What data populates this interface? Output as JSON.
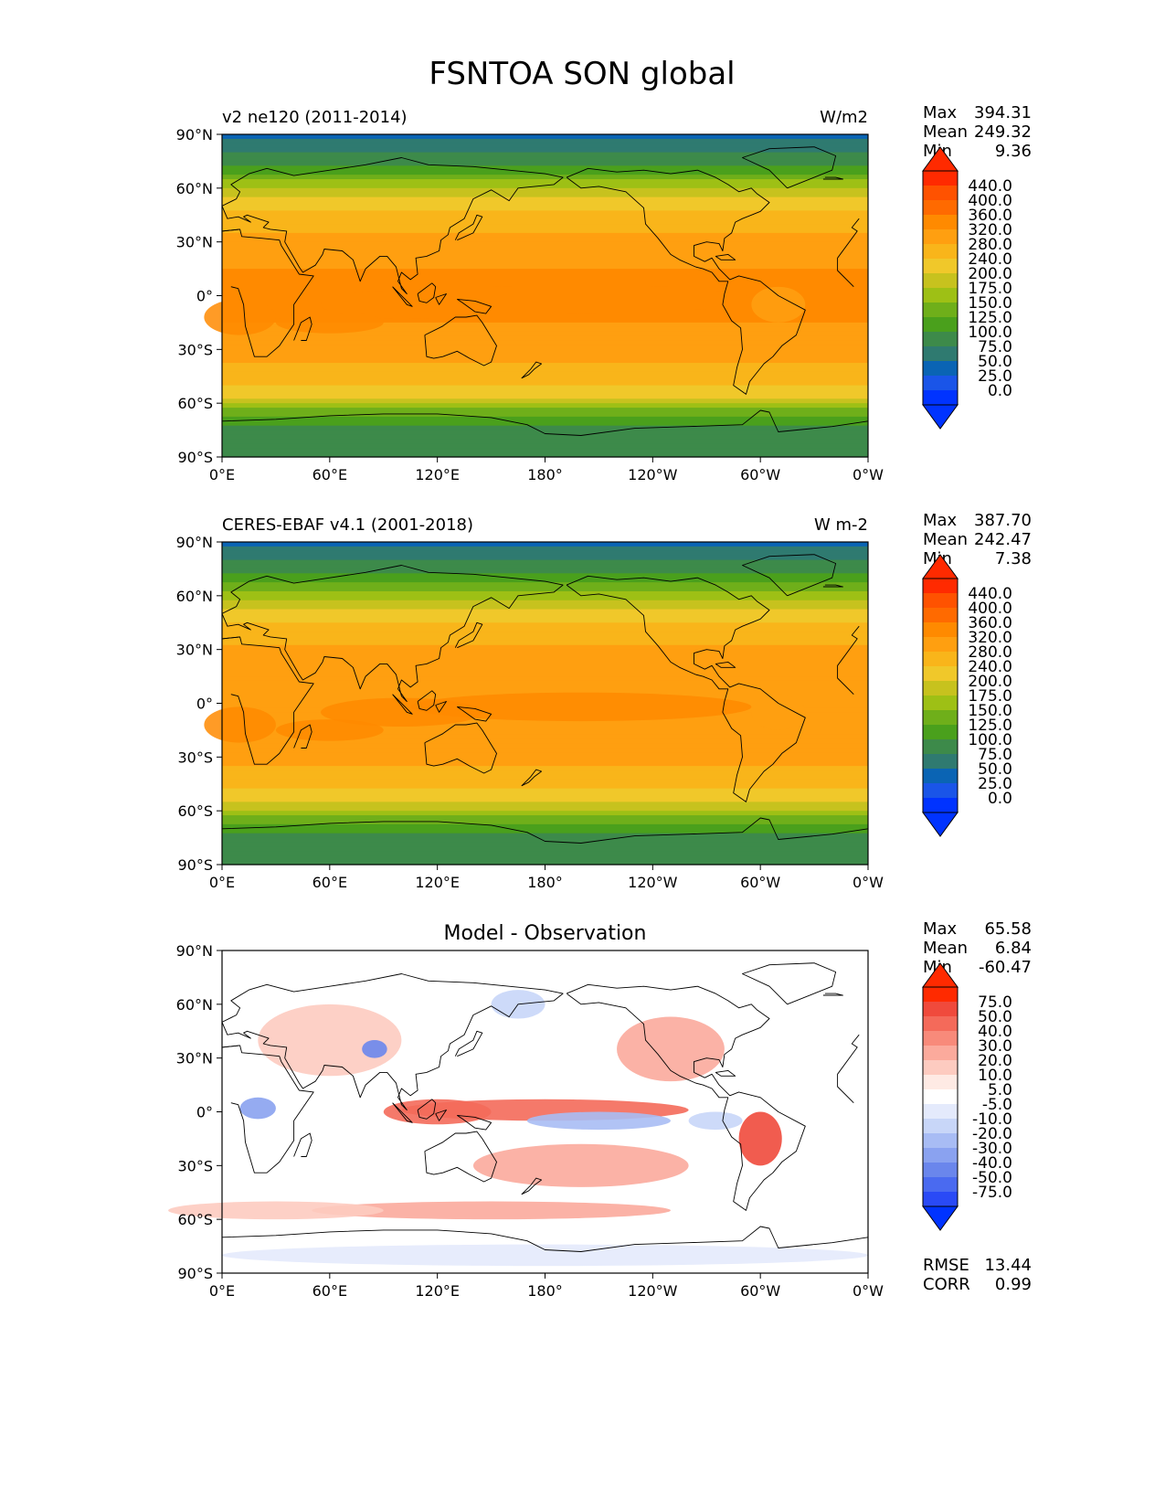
{
  "title": "FSNTOA SON global",
  "lon_ticks": [
    "0°E",
    "60°E",
    "120°E",
    "180°",
    "120°W",
    "60°W",
    "0°W"
  ],
  "lat_ticks": [
    "90°N",
    "60°N",
    "30°N",
    "0°",
    "30°S",
    "60°S",
    "90°S"
  ],
  "panels": [
    {
      "left_title": "v2 ne120 (2011-2014)",
      "center_title": "",
      "right_title": "W/m2",
      "stats": [
        {
          "label": "Max",
          "value": "394.31"
        },
        {
          "label": "Mean",
          "value": "249.32"
        },
        {
          "label": "Min",
          "value": "9.36"
        }
      ],
      "colorbar_labels": [
        "440.0",
        "400.0",
        "360.0",
        "320.0",
        "280.0",
        "240.0",
        "200.0",
        "175.0",
        "150.0",
        "125.0",
        "100.0",
        "75.0",
        "50.0",
        "25.0",
        "0.0"
      ],
      "colorbar_colors": [
        "#ff2a00",
        "#ff5200",
        "#ff6a00",
        "#ff8a00",
        "#ff9f10",
        "#f9b51a",
        "#f0c82a",
        "#c7c21e",
        "#9ec015",
        "#6faf1a",
        "#4aa01c",
        "#3d8a4a",
        "#2f7a70",
        "#0a64b4",
        "#1a55e8",
        "#0033ff"
      ],
      "overflow_colors": {
        "over": "#ff2a00",
        "under": "#0033ff"
      }
    },
    {
      "left_title": "CERES-EBAF v4.1 (2001-2018)",
      "center_title": "",
      "right_title": "W m-2",
      "stats": [
        {
          "label": "Max",
          "value": "387.70"
        },
        {
          "label": "Mean",
          "value": "242.47"
        },
        {
          "label": "Min",
          "value": "7.38"
        }
      ],
      "colorbar_labels": [
        "440.0",
        "400.0",
        "360.0",
        "320.0",
        "280.0",
        "240.0",
        "200.0",
        "175.0",
        "150.0",
        "125.0",
        "100.0",
        "75.0",
        "50.0",
        "25.0",
        "0.0"
      ],
      "colorbar_colors": [
        "#ff2a00",
        "#ff5200",
        "#ff6a00",
        "#ff8a00",
        "#ff9f10",
        "#f9b51a",
        "#f0c82a",
        "#c7c21e",
        "#9ec015",
        "#6faf1a",
        "#4aa01c",
        "#3d8a4a",
        "#2f7a70",
        "#0a64b4",
        "#1a55e8",
        "#0033ff"
      ],
      "overflow_colors": {
        "over": "#ff2a00",
        "under": "#0033ff"
      }
    },
    {
      "left_title": "",
      "center_title": "Model - Observation",
      "right_title": "",
      "stats": [
        {
          "label": "Max",
          "value": "65.58"
        },
        {
          "label": "Mean",
          "value": "6.84"
        },
        {
          "label": "Min",
          "value": "-60.47"
        }
      ],
      "colorbar_labels": [
        "75.0",
        "50.0",
        "40.0",
        "30.0",
        "20.0",
        "10.0",
        "5.0",
        "-5.0",
        "-10.0",
        "-20.0",
        "-30.0",
        "-40.0",
        "-50.0",
        "-75.0"
      ],
      "colorbar_colors": [
        "#ff2a00",
        "#f04a3c",
        "#f46a5a",
        "#f88a7a",
        "#fbaa9c",
        "#fdcbc0",
        "#feeae4",
        "#ffffff",
        "#e4eafc",
        "#c8d6f8",
        "#a8bcf4",
        "#8aa2f0",
        "#6a86ec",
        "#4a6af0",
        "#2a4af6"
      ],
      "overflow_colors": {
        "over": "#ff2a00",
        "under": "#0033ff"
      },
      "extra_stats": [
        {
          "label": "RMSE",
          "value": "13.44"
        },
        {
          "label": "CORR",
          "value": "0.99"
        }
      ]
    }
  ],
  "chart_data": [
    {
      "type": "heatmap",
      "title": "v2 ne120 (2011-2014)",
      "units": "W/m2",
      "xlim": [
        0,
        360
      ],
      "ylim": [
        -90,
        90
      ],
      "levels": [
        0,
        25,
        50,
        75,
        100,
        125,
        150,
        175,
        200,
        240,
        280,
        320,
        360,
        400,
        440
      ],
      "zonal_mean_profile": {
        "lat": [
          90,
          75,
          60,
          45,
          30,
          15,
          0,
          -15,
          -30,
          -45,
          -55,
          -65,
          -75,
          -90
        ],
        "value": [
          40,
          90,
          170,
          250,
          290,
          320,
          330,
          320,
          300,
          260,
          210,
          140,
          90,
          80
        ]
      },
      "max": 394.31,
      "mean": 249.32,
      "min": 9.36
    },
    {
      "type": "heatmap",
      "title": "CERES-EBAF v4.1 (2001-2018)",
      "units": "W m-2",
      "xlim": [
        0,
        360
      ],
      "ylim": [
        -90,
        90
      ],
      "levels": [
        0,
        25,
        50,
        75,
        100,
        125,
        150,
        175,
        200,
        240,
        280,
        320,
        360,
        400,
        440
      ],
      "zonal_mean_profile": {
        "lat": [
          90,
          75,
          60,
          45,
          30,
          15,
          0,
          -15,
          -30,
          -45,
          -55,
          -65,
          -75,
          -90
        ],
        "value": [
          40,
          90,
          165,
          245,
          285,
          310,
          320,
          315,
          295,
          255,
          205,
          135,
          85,
          80
        ]
      },
      "max": 387.7,
      "mean": 242.47,
      "min": 7.38
    },
    {
      "type": "heatmap",
      "title": "Model - Observation",
      "xlim": [
        0,
        360
      ],
      "ylim": [
        -90,
        90
      ],
      "levels": [
        -75,
        -50,
        -40,
        -30,
        -20,
        -10,
        -5,
        5,
        10,
        20,
        30,
        40,
        50,
        75
      ],
      "max": 65.58,
      "mean": 6.84,
      "min": -60.47,
      "rmse": 13.44,
      "corr": 0.99
    }
  ]
}
